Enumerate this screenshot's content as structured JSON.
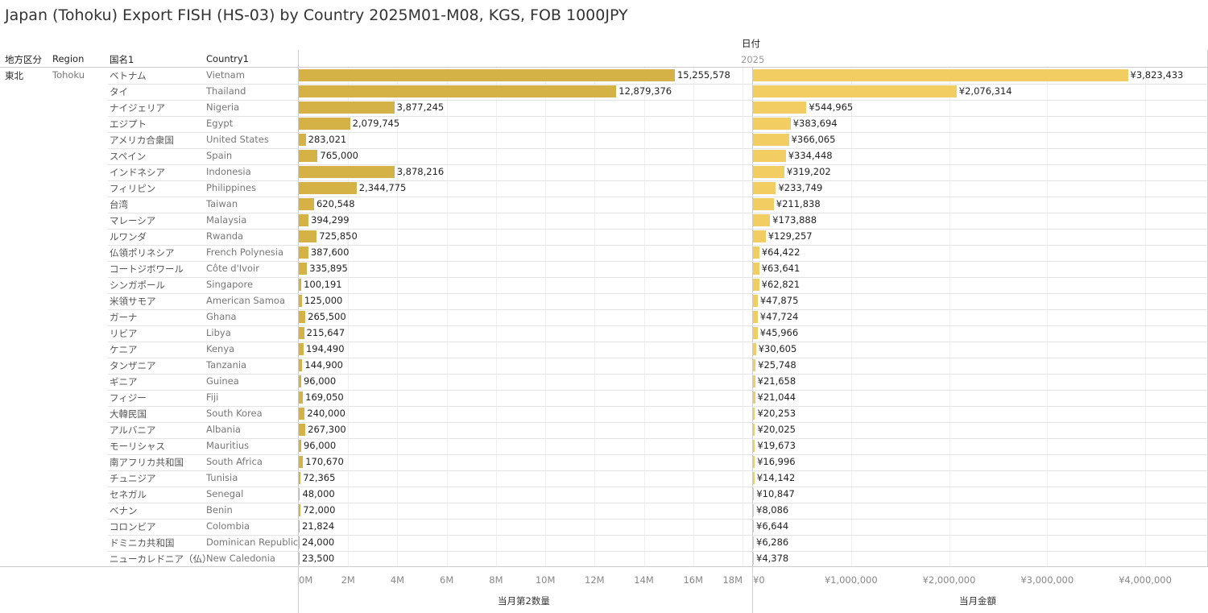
{
  "title": "Japan (Tohoku) Export FISH (HS-03) by Country 2025M01-M08, KGS, FOB 1000JPY",
  "headers": {
    "date": "日付",
    "year": "2025",
    "region_jp": "地方区分",
    "region": "Region",
    "country_jp": "国名1",
    "country": "Country1"
  },
  "region_value": {
    "jp": "東北",
    "en": "Tohoku"
  },
  "colors": {
    "qty": "#D4B246",
    "value": "#F2CE62"
  },
  "chart_data": {
    "type": "bar",
    "categories_jp": [
      "ベトナム",
      "タイ",
      "ナイジェリア",
      "エジプト",
      "アメリカ合衆国",
      "スペイン",
      "インドネシア",
      "フィリピン",
      "台湾",
      "マレーシア",
      "ルワンダ",
      "仏領ポリネシア",
      "コートジボワール",
      "シンガポール",
      "米領サモア",
      "ガーナ",
      "リビア",
      "ケニア",
      "タンザニア",
      "ギニア",
      "フィジー",
      "大韓民国",
      "アルバニア",
      "モーリシャス",
      "南アフリカ共和国",
      "チュニジア",
      "セネガル",
      "ベナン",
      "コロンビア",
      "ドミニカ共和国",
      "ニューカレドニア（仏）"
    ],
    "categories": [
      "Vietnam",
      "Thailand",
      "Nigeria",
      "Egypt",
      "United States",
      "Spain",
      "Indonesia",
      "Philippines",
      "Taiwan",
      "Malaysia",
      "Rwanda",
      "French Polynesia",
      "Côte d'Ivoir",
      "Singapore",
      "American Samoa",
      "Ghana",
      "Libya",
      "Kenya",
      "Tanzania",
      "Guinea",
      "Fiji",
      "South Korea",
      "Albania",
      "Mauritius",
      "South Africa",
      "Tunisia",
      "Senegal",
      "Benin",
      "Colombia",
      "Dominican Republic",
      "New Caledonia"
    ],
    "series": [
      {
        "name": "当月第2数量",
        "values": [
          15255578,
          12879376,
          3877245,
          2079745,
          283021,
          765000,
          3878216,
          2344775,
          620548,
          394299,
          725850,
          387600,
          335895,
          100191,
          125000,
          265500,
          215647,
          194490,
          144900,
          96000,
          169050,
          240000,
          267300,
          96000,
          170670,
          72365,
          48000,
          72000,
          21824,
          24000,
          23500
        ],
        "xlabel": "当月第2数量",
        "xlim": [
          0,
          18000000
        ],
        "ticks": [
          "0M",
          "2M",
          "4M",
          "6M",
          "8M",
          "10M",
          "12M",
          "14M",
          "16M",
          "18M"
        ]
      },
      {
        "name": "当月金額",
        "values": [
          3823433,
          2076314,
          544965,
          383694,
          366065,
          334448,
          319202,
          233749,
          211838,
          173888,
          129257,
          64422,
          63641,
          62821,
          47875,
          47724,
          45966,
          30605,
          25748,
          21658,
          21044,
          20253,
          20025,
          19673,
          16996,
          14142,
          10847,
          8086,
          6644,
          6286,
          4378
        ],
        "xlabel": "当月金額",
        "xlim": [
          0,
          4000000
        ],
        "ticks": [
          "¥0",
          "¥1,000,000",
          "¥2,000,000",
          "¥3,000,000",
          "¥4,000,000"
        ]
      }
    ]
  }
}
